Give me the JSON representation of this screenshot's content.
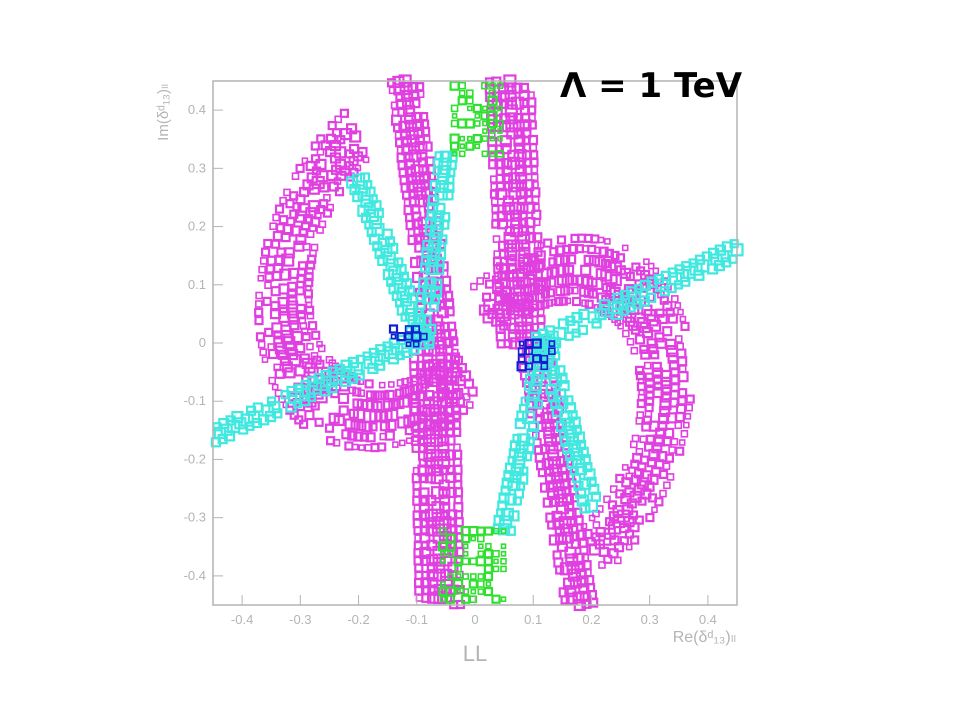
{
  "slide": {
    "banner": "Λ = 1 TeV"
  },
  "chart_data": {
    "type": "heatmap",
    "title": "",
    "xlabel": "Re(δᵈ₁₃)ₗₗ",
    "ylabel": "Im(δᵈ₁₃)ₗₗ",
    "footer_label": "LL",
    "xlim": [
      -0.45,
      0.45
    ],
    "ylim": [
      -0.45,
      0.45
    ],
    "grid": false,
    "x_ticks": [
      "-0.4",
      "-0.3",
      "-0.2",
      "-0.1",
      "0",
      "0.1",
      "0.2",
      "0.3",
      "0.4"
    ],
    "x_tick_values": [
      -0.4,
      -0.3,
      -0.2,
      -0.1,
      0,
      0.1,
      0.2,
      0.3,
      0.4
    ],
    "y_ticks": [
      "0.4",
      "0.3",
      "0.2",
      "0.1",
      "0",
      "-0.1",
      "-0.2",
      "-0.3",
      "-0.4"
    ],
    "y_tick_values": [
      0.4,
      0.3,
      0.2,
      0.1,
      0,
      -0.1,
      -0.2,
      -0.3,
      -0.4
    ],
    "colors": {
      "magenta": "#e040e0",
      "cyan": "#40e8e0",
      "green": "#30e030",
      "blue": "#1020d0",
      "axis": "#b4b4b4"
    },
    "series": [
      {
        "color": "magenta",
        "regions": [
          {
            "shape": "ellipse-band",
            "center": [
              -0.11,
              0.15
            ],
            "rx": 0.2,
            "ry": 0.29,
            "rotation_deg": -25,
            "arc_deg": [
              150,
              330
            ],
            "width": 0.035
          },
          {
            "shape": "ellipse-band",
            "center": [
              0.11,
              -0.15
            ],
            "rx": 0.2,
            "ry": 0.29,
            "rotation_deg": -25,
            "arc_deg": [
              -30,
              150
            ],
            "width": 0.035
          },
          {
            "shape": "segment",
            "from": [
              -0.12,
              0.45
            ],
            "to": [
              -0.06,
              0.0
            ],
            "width": 0.03
          },
          {
            "shape": "segment",
            "from": [
              -0.07,
              0.0
            ],
            "to": [
              -0.06,
              -0.45
            ],
            "width": 0.035
          },
          {
            "shape": "segment",
            "from": [
              0.06,
              0.45
            ],
            "to": [
              0.08,
              0.0
            ],
            "width": 0.035
          },
          {
            "shape": "segment",
            "from": [
              0.1,
              0.0
            ],
            "to": [
              0.18,
              -0.45
            ],
            "width": 0.03
          }
        ]
      },
      {
        "color": "cyan",
        "regions": [
          {
            "shape": "segment",
            "from": [
              -0.45,
              -0.16
            ],
            "to": [
              -0.11,
              0.0
            ],
            "width": 0.015
          },
          {
            "shape": "segment",
            "from": [
              0.11,
              0.0
            ],
            "to": [
              0.45,
              0.16
            ],
            "width": 0.015
          },
          {
            "shape": "segment",
            "from": [
              -0.2,
              0.28
            ],
            "to": [
              -0.09,
              0.0
            ],
            "width": 0.012
          },
          {
            "shape": "segment",
            "from": [
              -0.05,
              0.32
            ],
            "to": [
              -0.09,
              0.0
            ],
            "width": 0.012
          },
          {
            "shape": "segment",
            "from": [
              0.12,
              0.0
            ],
            "to": [
              0.05,
              -0.32
            ],
            "width": 0.012
          },
          {
            "shape": "segment",
            "from": [
              0.12,
              0.0
            ],
            "to": [
              0.2,
              -0.28
            ],
            "width": 0.012
          }
        ]
      },
      {
        "color": "green",
        "regions": [
          {
            "shape": "patch",
            "center": [
              0.01,
              0.39
            ],
            "size": [
              0.09,
              0.13
            ]
          },
          {
            "shape": "patch",
            "center": [
              0.0,
              -0.38
            ],
            "size": [
              0.11,
              0.12
            ]
          }
        ]
      },
      {
        "color": "blue",
        "regions": [
          {
            "shape": "patch",
            "center": [
              -0.11,
              0.01
            ],
            "size": [
              0.06,
              0.05
            ]
          },
          {
            "shape": "patch",
            "center": [
              0.11,
              -0.02
            ],
            "size": [
              0.06,
              0.04
            ]
          }
        ]
      }
    ]
  }
}
